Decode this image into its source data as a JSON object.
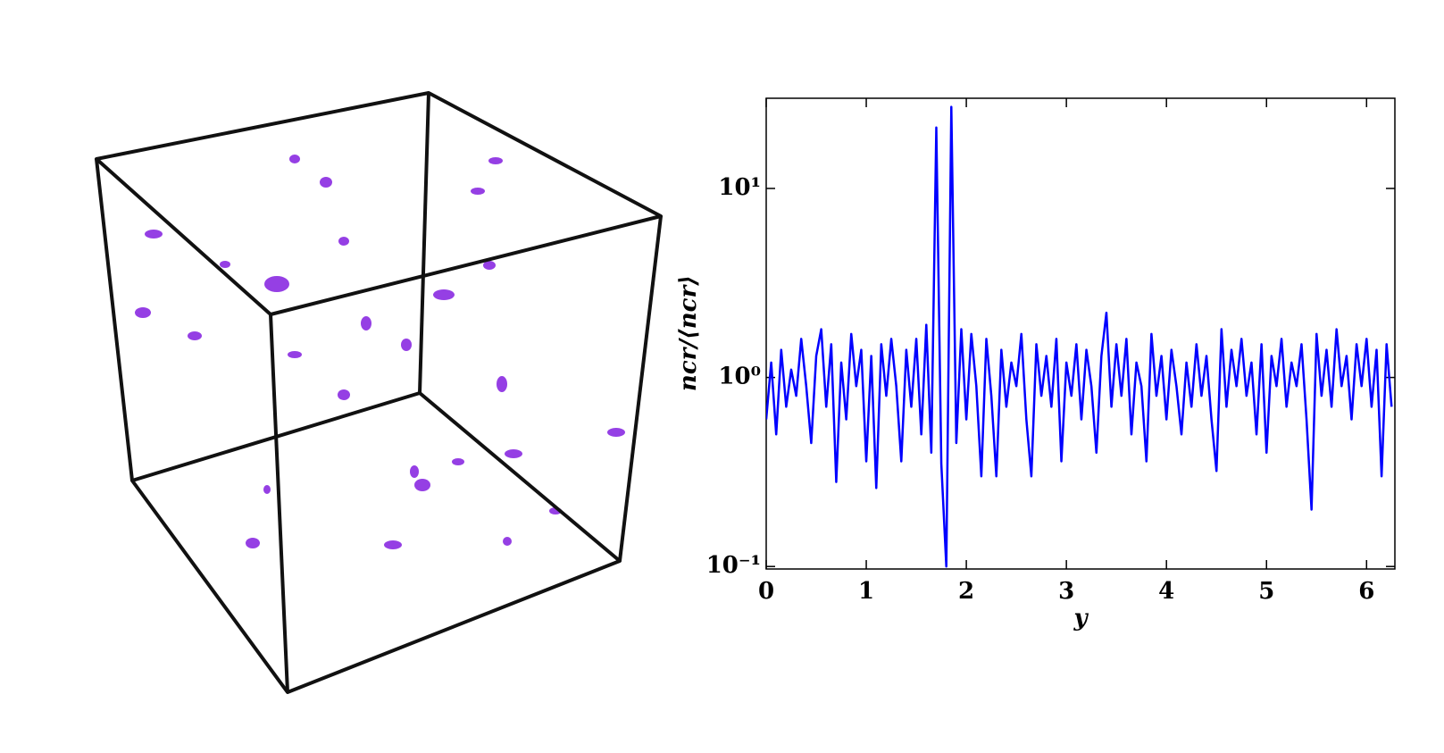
{
  "chart_data": {
    "type": "line",
    "x_label": "y",
    "y_label": "ncr/⟨ncr⟩",
    "color": "#0000ff",
    "log_y": true,
    "xlim": [
      0,
      6.283
    ],
    "ylim": [
      0.097,
      30
    ],
    "xticks": [
      0,
      1,
      2,
      3,
      4,
      5,
      6
    ],
    "yticks": [
      {
        "value": 0.1,
        "label": "10⁻¹"
      },
      {
        "value": 1,
        "label": "10⁰"
      },
      {
        "value": 10,
        "label": "10¹"
      }
    ],
    "x": [
      0,
      0.05,
      0.1,
      0.15,
      0.2,
      0.25,
      0.3,
      0.35,
      0.4,
      0.45,
      0.5,
      0.55,
      0.6,
      0.65,
      0.7,
      0.75,
      0.8,
      0.85,
      0.9,
      0.95,
      1,
      1.05,
      1.1,
      1.15,
      1.2,
      1.25,
      1.3,
      1.35,
      1.4,
      1.45,
      1.5,
      1.55,
      1.6,
      1.65,
      1.7,
      1.75,
      1.8,
      1.85,
      1.9,
      1.95,
      2,
      2.05,
      2.1,
      2.15,
      2.2,
      2.25,
      2.3,
      2.35,
      2.4,
      2.45,
      2.5,
      2.55,
      2.6,
      2.65,
      2.7,
      2.75,
      2.8,
      2.85,
      2.9,
      2.95,
      3,
      3.05,
      3.1,
      3.15,
      3.2,
      3.25,
      3.3,
      3.35,
      3.4,
      3.45,
      3.5,
      3.55,
      3.6,
      3.65,
      3.7,
      3.75,
      3.8,
      3.85,
      3.9,
      3.95,
      4,
      4.05,
      4.1,
      4.15,
      4.2,
      4.25,
      4.3,
      4.35,
      4.4,
      4.45,
      4.5,
      4.55,
      4.6,
      4.65,
      4.7,
      4.75,
      4.8,
      4.85,
      4.9,
      4.95,
      5,
      5.05,
      5.1,
      5.15,
      5.2,
      5.25,
      5.3,
      5.35,
      5.4,
      5.45,
      5.5,
      5.55,
      5.6,
      5.65,
      5.7,
      5.75,
      5.8,
      5.85,
      5.9,
      5.95,
      6,
      6.05,
      6.1,
      6.15,
      6.2,
      6.25
    ],
    "values": [
      0.6,
      1.2,
      0.5,
      1.4,
      0.7,
      1.1,
      0.8,
      1.6,
      0.9,
      0.45,
      1.3,
      1.8,
      0.7,
      1.5,
      0.28,
      1.2,
      0.6,
      1.7,
      0.9,
      1.4,
      0.36,
      1.3,
      0.26,
      1.5,
      0.8,
      1.6,
      0.9,
      0.36,
      1.4,
      0.7,
      1.6,
      0.5,
      1.9,
      0.4,
      21,
      0.35,
      0.1,
      27,
      0.45,
      1.8,
      0.6,
      1.7,
      0.9,
      0.3,
      1.6,
      0.8,
      0.3,
      1.4,
      0.7,
      1.2,
      0.9,
      1.7,
      0.6,
      0.3,
      1.5,
      0.8,
      1.3,
      0.7,
      1.6,
      0.36,
      1.2,
      0.8,
      1.5,
      0.6,
      1.4,
      0.9,
      0.4,
      1.3,
      2.2,
      0.7,
      1.5,
      0.8,
      1.6,
      0.5,
      1.2,
      0.9,
      0.36,
      1.7,
      0.8,
      1.3,
      0.6,
      1.4,
      0.9,
      0.5,
      1.2,
      0.7,
      1.5,
      0.8,
      1.3,
      0.6,
      0.32,
      1.8,
      0.7,
      1.4,
      0.9,
      1.6,
      0.8,
      1.2,
      0.5,
      1.5,
      0.4,
      1.3,
      0.9,
      1.6,
      0.7,
      1.2,
      0.9,
      1.5,
      0.6,
      0.2,
      1.7,
      0.8,
      1.4,
      0.7,
      1.8,
      0.9,
      1.3,
      0.6,
      1.5,
      0.9,
      1.6,
      0.7,
      1.4,
      0.3,
      1.5,
      0.7
    ]
  }
}
